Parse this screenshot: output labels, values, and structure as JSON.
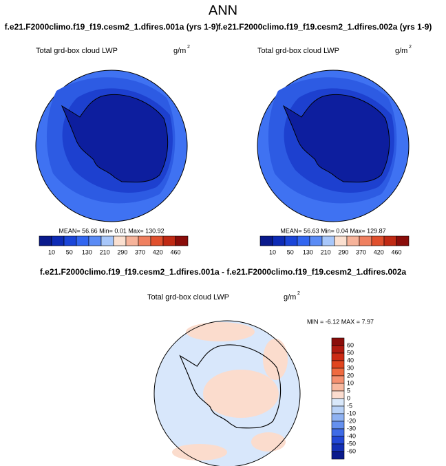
{
  "title": "ANN",
  "panels": [
    {
      "case": "f.e21.F2000climo.f19_f19.cesm2_1.dfires.001a (yrs 1-9)",
      "variable": "Total grd-box cloud LWP",
      "units": "g/m",
      "units_exponent": "2",
      "stats": "MEAN=  56.66   Min=   0.01   Max= 130.92",
      "colorbar_labels": [
        10,
        50,
        130,
        210,
        290,
        370,
        420,
        460
      ]
    },
    {
      "case": "f.e21.F2000climo.f19_f19.cesm2_1.dfires.002a (yrs 1-9)",
      "variable": "Total grd-box cloud LWP",
      "units": "g/m",
      "units_exponent": "2",
      "stats": "MEAN=  56.63   Min=   0.04   Max= 129.87",
      "colorbar_labels": [
        10,
        50,
        130,
        210,
        290,
        370,
        420,
        460
      ]
    }
  ],
  "difference": {
    "title": "f.e21.F2000climo.f19_f19.cesm2_1.dfires.001a - f.e21.F2000climo.f19_f19.cesm2_1.dfires.002a",
    "variable": "Total grd-box cloud LWP",
    "units": "g/m",
    "units_exponent": "2",
    "stats": "MIN =  -6.12  MAX =   7.97",
    "colorbar_labels": [
      60,
      50,
      40,
      30,
      20,
      10,
      5,
      0,
      -5,
      -10,
      -20,
      -30,
      -40,
      -50,
      -60
    ]
  }
}
